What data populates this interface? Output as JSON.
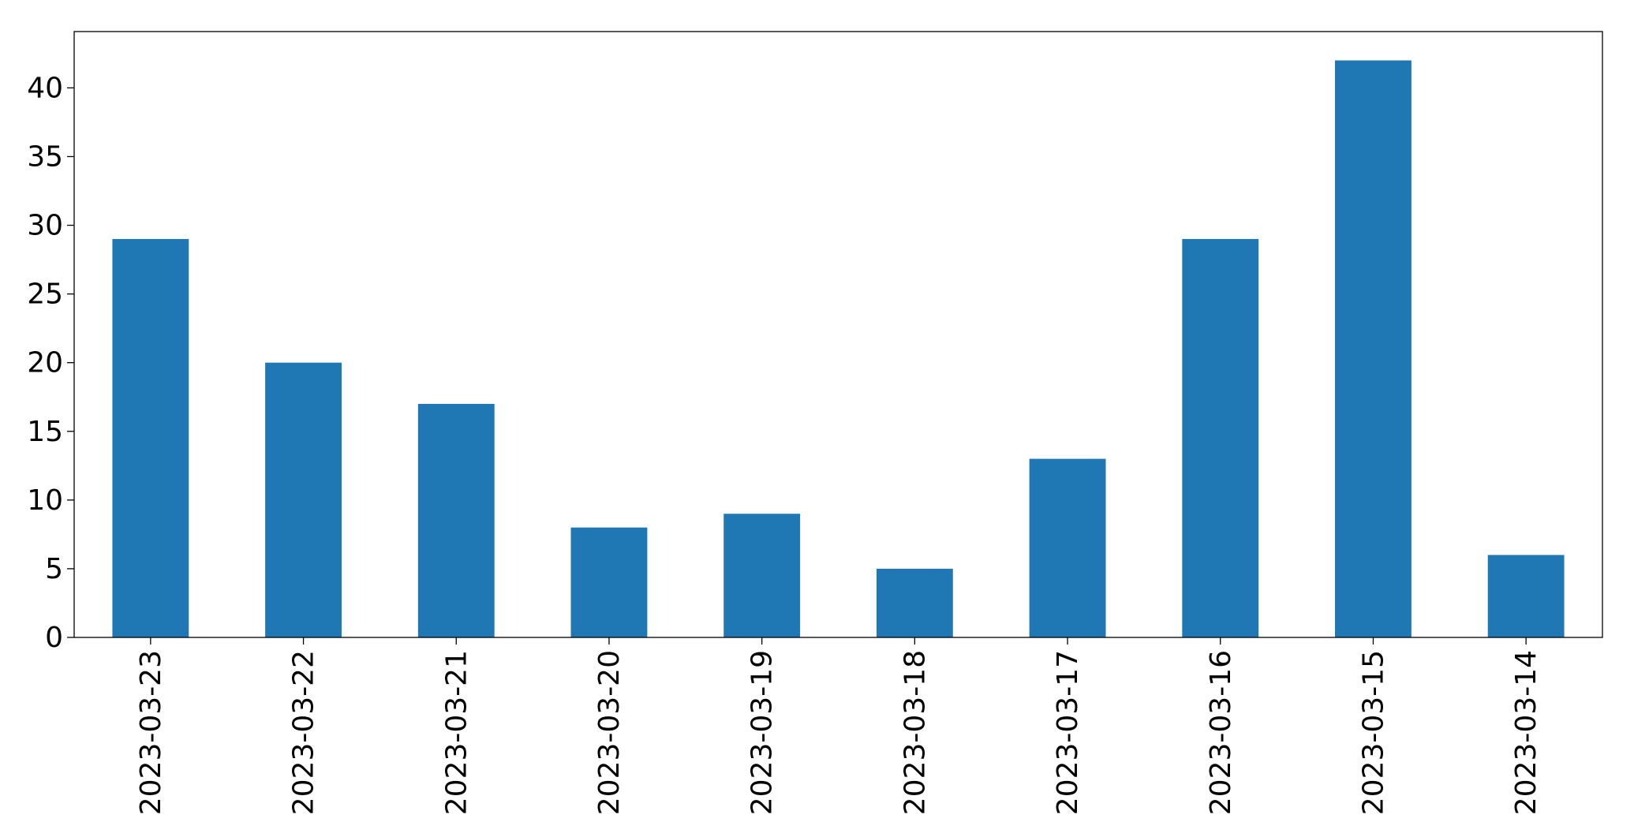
{
  "chart_data": {
    "type": "bar",
    "categories": [
      "2023-03-23",
      "2023-03-22",
      "2023-03-21",
      "2023-03-20",
      "2023-03-19",
      "2023-03-18",
      "2023-03-17",
      "2023-03-16",
      "2023-03-15",
      "2023-03-14"
    ],
    "values": [
      29,
      20,
      17,
      8,
      9,
      5,
      13,
      29,
      42,
      6
    ],
    "color": "#1f77b4",
    "ylim": [
      0,
      44.1
    ],
    "yticks": [
      0,
      5,
      10,
      15,
      20,
      25,
      30,
      35,
      40
    ],
    "grid": false
  }
}
